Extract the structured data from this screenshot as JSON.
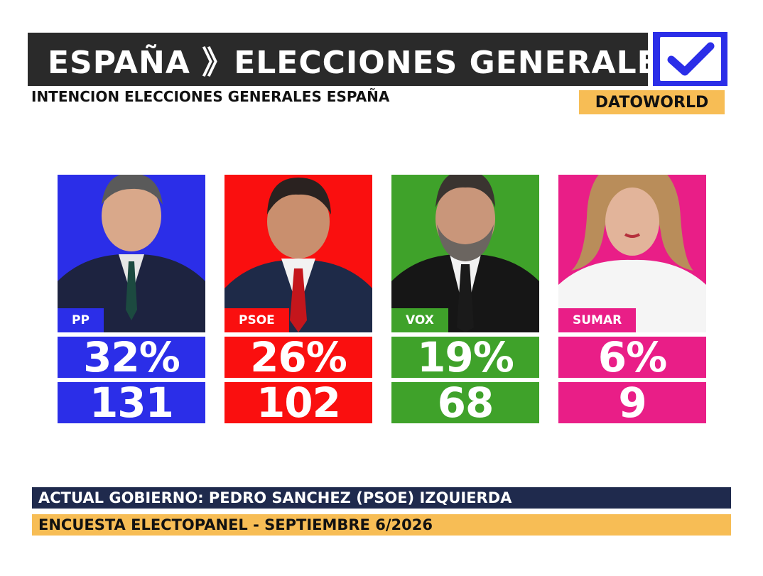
{
  "header": {
    "title": "ESPAÑA 》ELECCIONES GENERALES",
    "subtitle": "INTENCION ELECCIONES GENERALES ESPAÑA",
    "brand": "DATOWORLD",
    "check_icon": "checkmark-icon"
  },
  "chart_data": {
    "type": "table",
    "categories": [
      "PP",
      "PSOE",
      "VOX",
      "SUMAR"
    ],
    "series": [
      {
        "name": "percent",
        "values": [
          "32%",
          "26%",
          "19%",
          "6%"
        ]
      },
      {
        "name": "seats",
        "values": [
          "131",
          "102",
          "68",
          "9"
        ]
      }
    ]
  },
  "parties": [
    {
      "label": "PP",
      "percent": "32%",
      "seats": "131",
      "color": "#2b2ee8",
      "label_color": "#2b2ee8"
    },
    {
      "label": "PSOE",
      "percent": "26%",
      "seats": "102",
      "color": "#fa0f0f",
      "label_color": "#fa0f0f"
    },
    {
      "label": "VOX",
      "percent": "19%",
      "seats": "68",
      "color": "#3fa22a",
      "label_color": "#3fa22a"
    },
    {
      "label": "SUMAR",
      "percent": "6%",
      "seats": "9",
      "color": "#e91e87",
      "label_color": "#e91e87"
    }
  ],
  "footer": {
    "government": "ACTUAL GOBIERNO: PEDRO SANCHEZ (PSOE) IZQUIERDA",
    "poll": "ENCUESTA ELECTOPANEL - SEPTIEMBRE 6/2026"
  }
}
